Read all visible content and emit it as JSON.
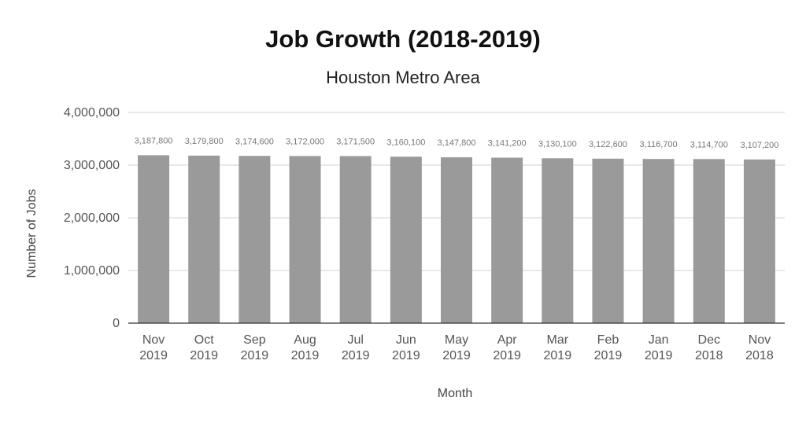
{
  "chart_data": {
    "type": "bar",
    "title": "Job Growth (2018-2019)",
    "subtitle": "Houston Metro Area",
    "xlabel": "Month",
    "ylabel": "Number of Jobs",
    "ylim": [
      0,
      4000000
    ],
    "yticks": [
      0,
      1000000,
      2000000,
      3000000,
      4000000
    ],
    "ytick_labels": [
      "0",
      "1,000,000",
      "2,000,000",
      "3,000,000",
      "4,000,000"
    ],
    "grid": true,
    "bar_color": "#9a9a9a",
    "categories": [
      [
        "Nov",
        "2019"
      ],
      [
        "Oct",
        "2019"
      ],
      [
        "Sep",
        "2019"
      ],
      [
        "Aug",
        "2019"
      ],
      [
        "Jul",
        "2019"
      ],
      [
        "Jun",
        "2019"
      ],
      [
        "May",
        "2019"
      ],
      [
        "Apr",
        "2019"
      ],
      [
        "Mar",
        "2019"
      ],
      [
        "Feb",
        "2019"
      ],
      [
        "Jan",
        "2019"
      ],
      [
        "Dec",
        "2018"
      ],
      [
        "Nov",
        "2018"
      ]
    ],
    "values": [
      3187800,
      3179800,
      3174600,
      3172000,
      3171500,
      3160100,
      3147800,
      3141200,
      3130100,
      3122600,
      3116700,
      3114700,
      3107200
    ],
    "value_labels": [
      "3,187,800",
      "3,179,800",
      "3,174,600",
      "3,172,000",
      "3,171,500",
      "3,160,100",
      "3,147,800",
      "3,141,200",
      "3,130,100",
      "3,122,600",
      "3,116,700",
      "3,114,700",
      "3,107,200"
    ]
  }
}
